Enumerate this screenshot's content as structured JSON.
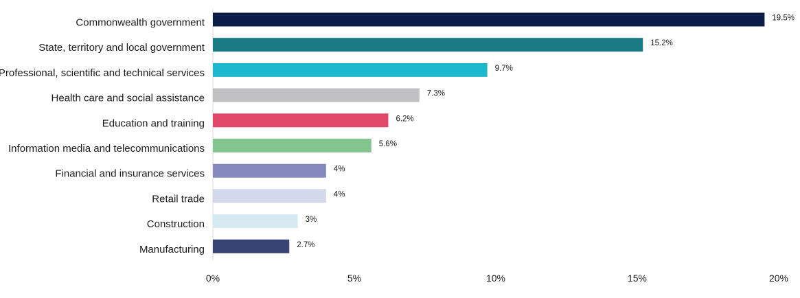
{
  "chart_data": {
    "type": "bar",
    "orientation": "horizontal",
    "title": "",
    "xlabel": "",
    "ylabel": "",
    "xlim": [
      0,
      20
    ],
    "x_ticks": [
      0,
      5,
      10,
      15,
      20
    ],
    "x_tick_labels": [
      "0%",
      "5%",
      "10%",
      "15%",
      "20%"
    ],
    "grid": false,
    "legend": "none",
    "categories": [
      "Commonwealth government",
      "State, territory and local government",
      "Professional, scientific and technical services",
      "Health care and social assistance",
      "Education and training",
      "Information media and telecommunications",
      "Financial and insurance services",
      "Retail trade",
      "Construction",
      "Manufacturing"
    ],
    "values": [
      19.5,
      15.2,
      9.7,
      7.3,
      6.2,
      5.6,
      4,
      4,
      3,
      2.7
    ],
    "value_labels": [
      "19.5%",
      "15.2%",
      "9.7%",
      "7.3%",
      "6.2%",
      "5.6%",
      "4%",
      "4%",
      "3%",
      "2.7%"
    ],
    "colors": [
      "#0b1c48",
      "#1a7b85",
      "#1eb8ce",
      "#c0c0c2",
      "#e1486a",
      "#84c48e",
      "#8488bd",
      "#d3d7ea",
      "#d6ebf1",
      "#384474"
    ]
  }
}
